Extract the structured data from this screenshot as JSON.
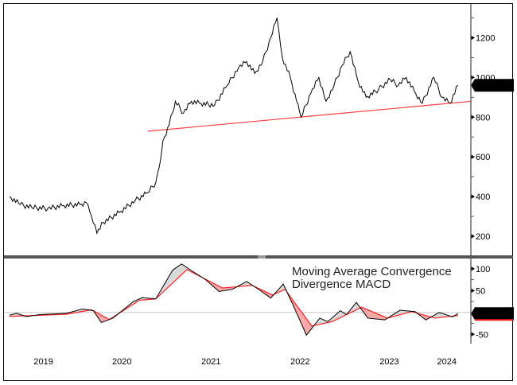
{
  "chart_data": [
    {
      "type": "line",
      "panel": "price",
      "axis_side": "right",
      "ylim": [
        100,
        1350
      ],
      "yticks": [
        200,
        400,
        600,
        800,
        1000,
        1200
      ],
      "xlim": [
        2019.24,
        2024.29
      ],
      "last_value_label": "960.5250",
      "colors": {
        "price": "#000000",
        "trendline": "#ff3b3b",
        "label_bg": "#000000"
      },
      "series": [
        {
          "x": [
            2019.24,
            2019.36,
            2019.49,
            2019.67,
            2019.85,
            2020.03,
            2020.1,
            2020.16,
            2020.22,
            2020.29,
            2020.47,
            2020.65,
            2020.79,
            2020.88,
            2020.92,
            2020.96,
            2021.03,
            2021.1,
            2021.19,
            2021.28,
            2021.37,
            2021.54,
            2021.68,
            2021.81,
            2021.9,
            2021.99,
            2022.08,
            2022.17,
            2022.24,
            2022.3,
            2022.39,
            2022.46,
            2022.51,
            2022.62,
            2022.71,
            2022.79,
            2022.88,
            2022.97,
            2023.06,
            2023.15,
            2023.24,
            2023.38,
            2023.51,
            2023.6,
            2023.69,
            2023.78,
            2023.87,
            2024.0,
            2024.09,
            2024.18,
            2024.27
          ],
          "y": [
            400,
            360,
            345,
            340,
            355,
            360,
            370,
            300,
            215,
            270,
            320,
            380,
            420,
            470,
            550,
            680,
            760,
            880,
            820,
            880,
            870,
            860,
            960,
            1050,
            1080,
            1020,
            1080,
            1200,
            1300,
            1100,
            1000,
            880,
            800,
            920,
            1000,
            880,
            960,
            1060,
            1130,
            980,
            900,
            940,
            990,
            960,
            1000,
            930,
            870,
            1000,
            900,
            870,
            960.525
          ]
        }
      ],
      "trendline": {
        "x": [
          2020.79,
          2024.42
        ],
        "y": [
          729,
          880
        ]
      }
    },
    {
      "type": "line",
      "panel": "macd",
      "axis_side": "right",
      "title_lines": [
        "Moving Average Convergence",
        "Divergence MACD"
      ],
      "ylim": [
        -75,
        118
      ],
      "yticks": [
        100,
        50,
        -50
      ],
      "zero_line": true,
      "xlim": [
        2019.24,
        2024.29
      ],
      "x_tick_labels": [
        "2019",
        "2020",
        "2021",
        "2022",
        "2023",
        "2024"
      ],
      "last_value_label": "-2.5745",
      "colors": {
        "macd": "#000000",
        "signal": "#ff2020",
        "fill_above": "#d9d9d9",
        "fill_below": "#f7a8a8",
        "zero": "#c8c8c8"
      },
      "macd": {
        "x": [
          2019.24,
          2019.32,
          2019.43,
          2019.58,
          2019.88,
          2020.06,
          2020.18,
          2020.27,
          2020.4,
          2020.63,
          2020.73,
          2020.88,
          2021.07,
          2021.17,
          2021.25,
          2021.44,
          2021.59,
          2021.74,
          2021.9,
          2022.04,
          2022.17,
          2022.31,
          2022.41,
          2022.57,
          2022.72,
          2022.81,
          2022.95,
          2023.02,
          2023.13,
          2023.26,
          2023.45,
          2023.62,
          2023.79,
          2023.91,
          2024.06,
          2024.21,
          2024.27
        ],
        "y": [
          -6,
          -2,
          -9.5,
          -5,
          -2,
          8,
          4,
          -23,
          -13,
          25,
          34,
          31,
          97,
          111,
          100,
          75,
          48,
          53,
          71,
          52,
          33,
          65,
          22,
          -52,
          -13,
          -21,
          4,
          -5,
          23,
          -13,
          -17,
          5,
          2,
          -17,
          0,
          -10,
          -2.5745
        ]
      },
      "signal": {
        "x": [
          2019.24,
          2019.51,
          2019.88,
          2020.16,
          2020.36,
          2020.7,
          2020.88,
          2021.23,
          2021.63,
          2021.96,
          2022.19,
          2022.33,
          2022.63,
          2022.86,
          2023.19,
          2023.48,
          2023.75,
          2024.01,
          2024.27
        ],
        "y": [
          -9,
          -7,
          -4,
          6,
          -16,
          28,
          31,
          98,
          56,
          62,
          40,
          53,
          -31,
          -21,
          12,
          -13,
          2,
          -13,
          -7
        ]
      }
    }
  ]
}
